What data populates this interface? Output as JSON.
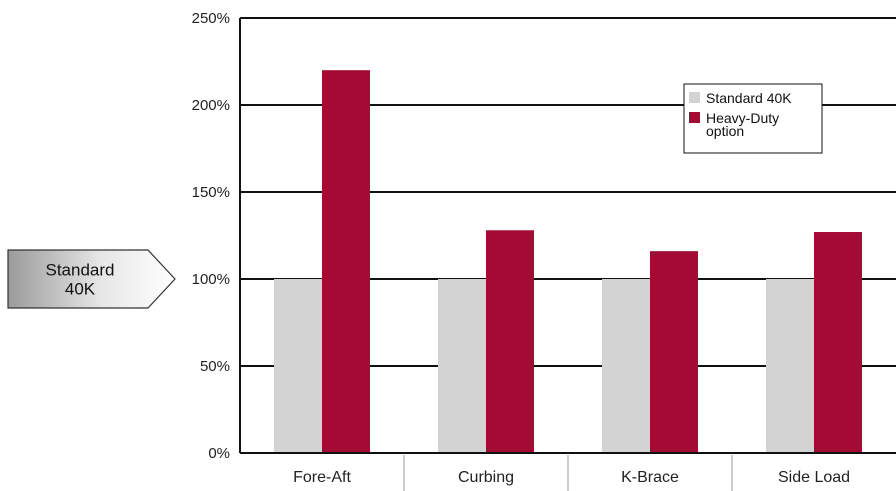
{
  "chart_data": {
    "type": "bar",
    "title": "",
    "xlabel": "",
    "ylabel": "",
    "categories": [
      "Fore-Aft",
      "Curbing",
      "K-Brace",
      "Side Load"
    ],
    "series": [
      {
        "name": "Standard 40K",
        "values": [
          100,
          100,
          100,
          100
        ],
        "color": "#d3d3d3"
      },
      {
        "name": "Heavy-Duty option",
        "values": [
          220,
          128,
          116,
          127
        ],
        "color": "#a30a34"
      }
    ],
    "ylim": [
      0,
      250
    ],
    "yticks": [
      0,
      50,
      100,
      150,
      200,
      250
    ],
    "ytick_format": "percent",
    "grid": true,
    "legend": {
      "placement": "top-right",
      "entries": [
        {
          "lines": [
            "Standard 40K"
          ],
          "color": "#d3d3d3"
        },
        {
          "lines": [
            "Heavy-Duty",
            "option"
          ],
          "color": "#a30a34"
        }
      ]
    },
    "reference_marker": {
      "lines": [
        "Standard",
        "40K"
      ],
      "value": 100
    }
  }
}
